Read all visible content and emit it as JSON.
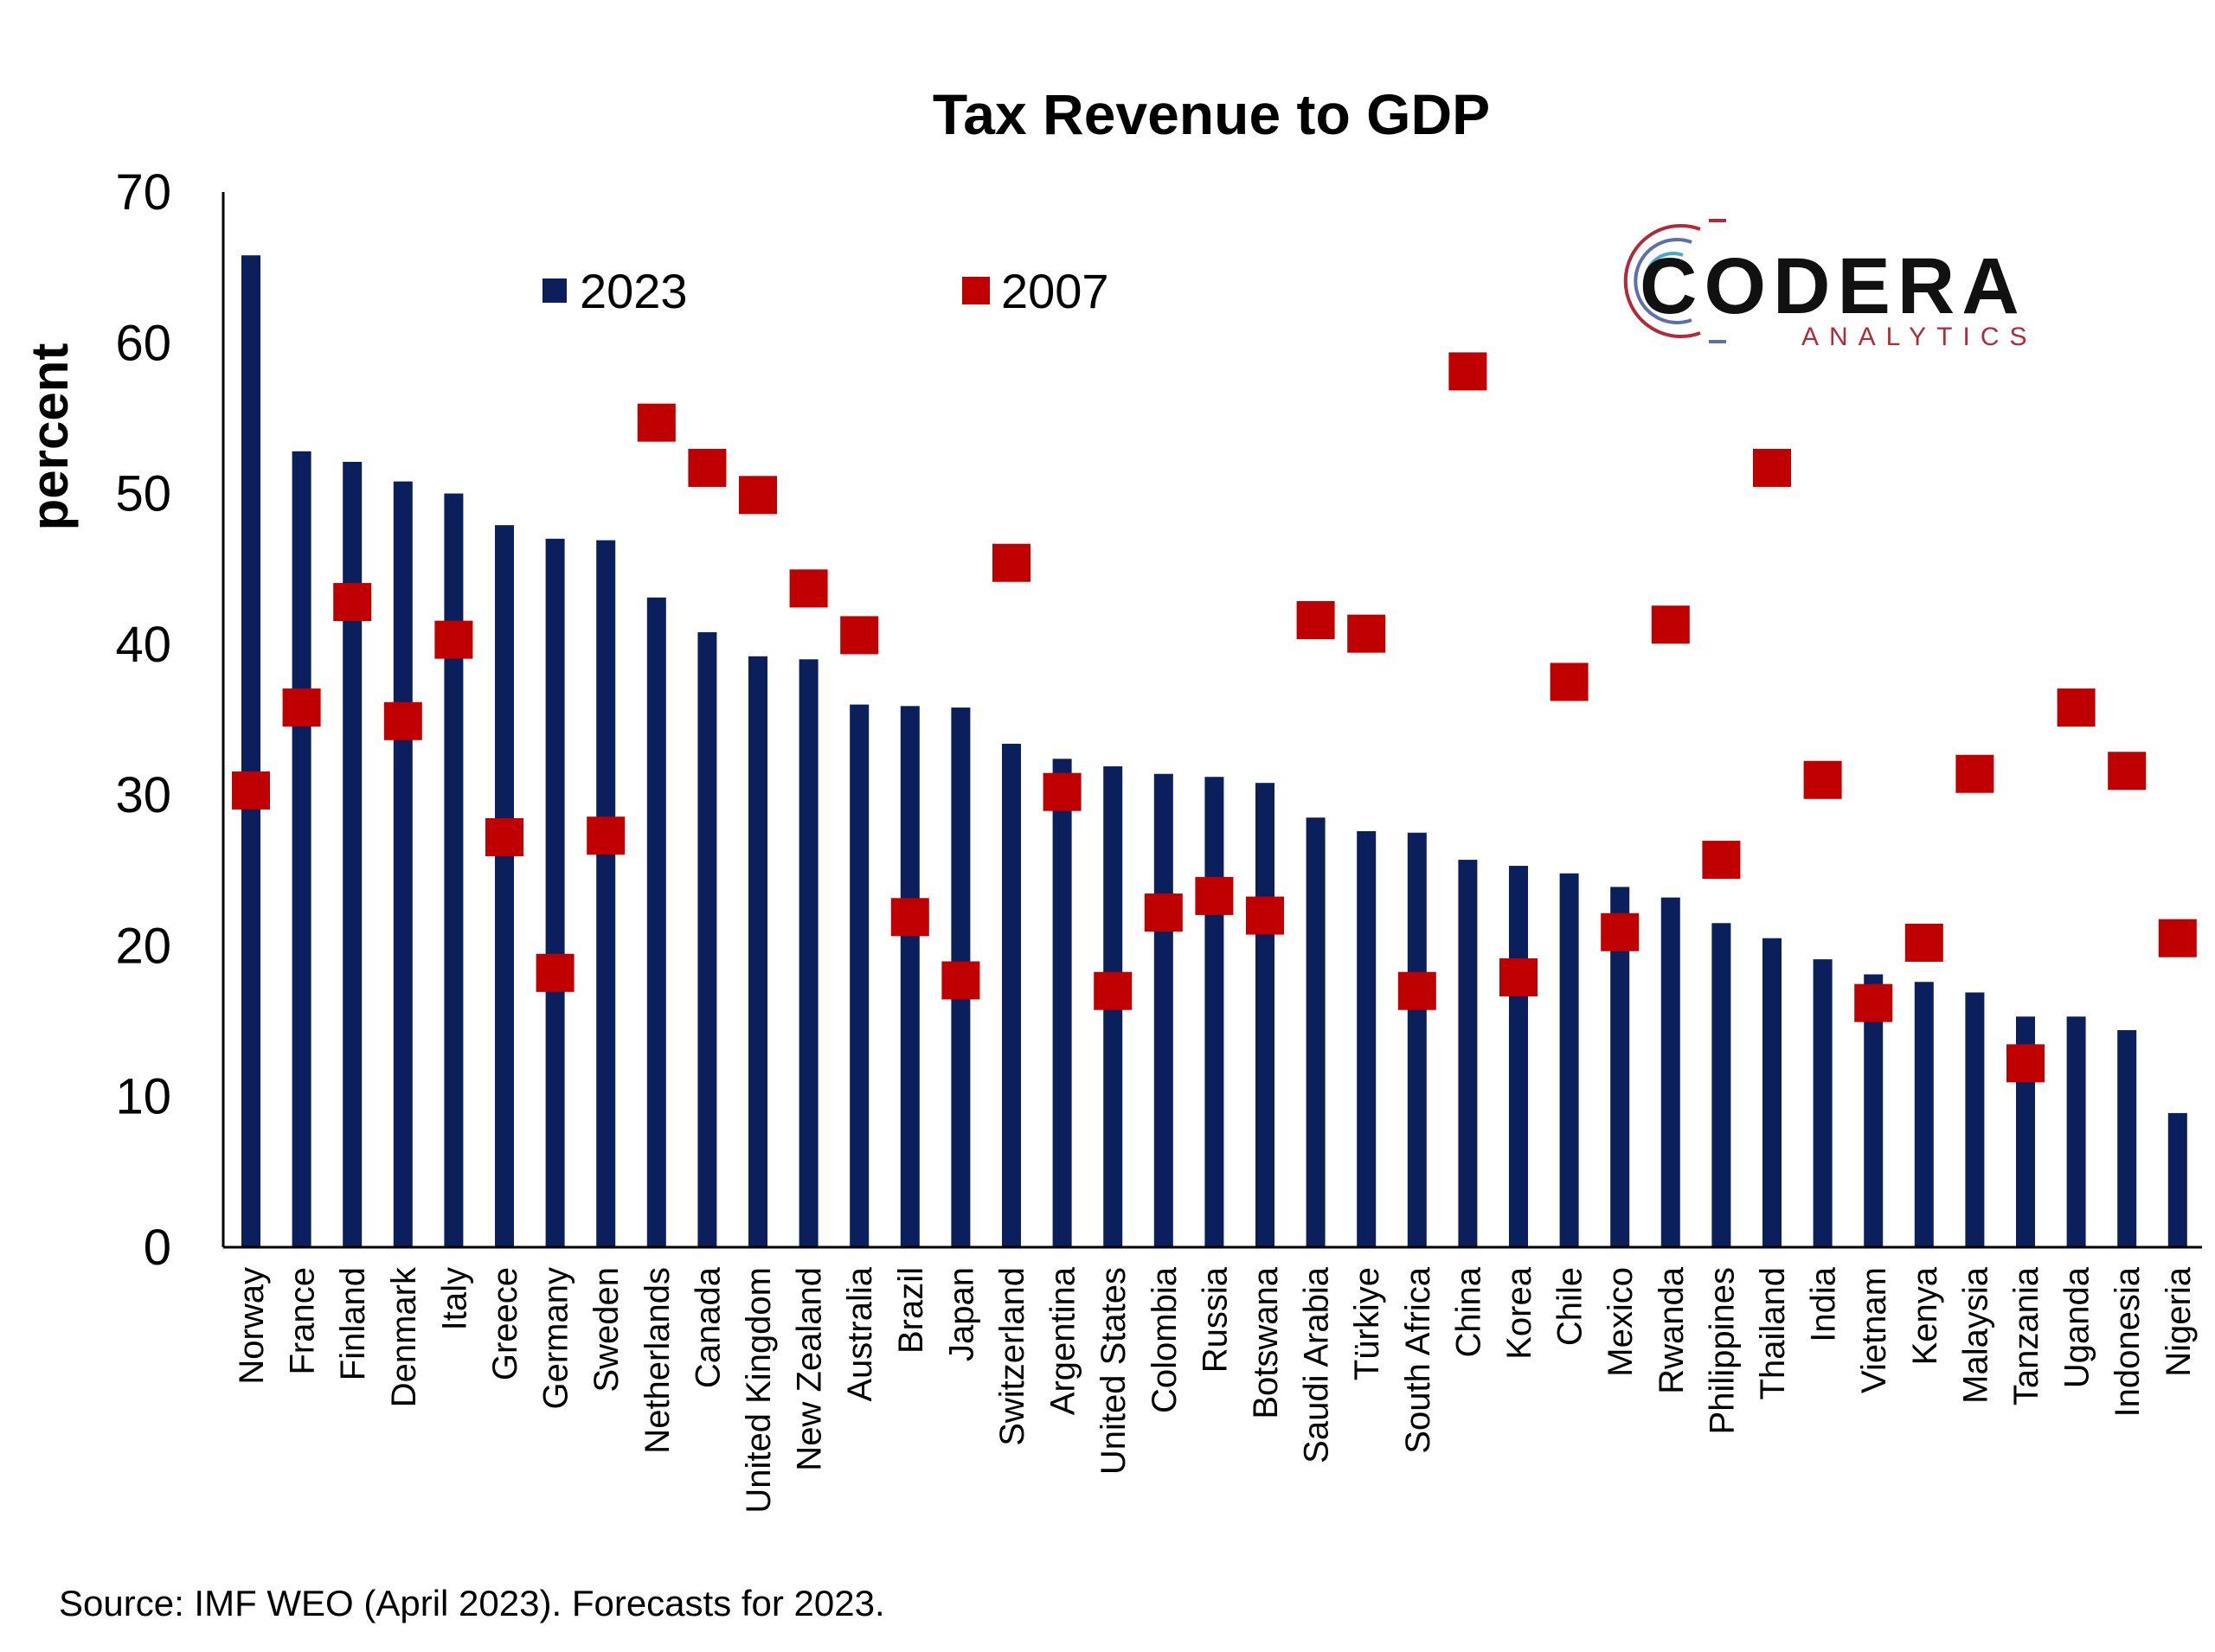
{
  "chart_data": {
    "type": "bar",
    "title": "Tax Revenue to GDP",
    "ylabel": "percent",
    "xlabel": "",
    "ylim": [
      0,
      70
    ],
    "yticks": [
      0,
      10,
      20,
      30,
      40,
      50,
      60,
      70
    ],
    "grid": false,
    "legend_position": "top",
    "categories": [
      "Norway",
      "France",
      "Finland",
      "Denmark",
      "Italy",
      "Greece",
      "Germany",
      "Sweden",
      "Netherlands",
      "Canada",
      "United Kingdom",
      "New Zealand",
      "Australia",
      "Brazil",
      "Japan",
      "Switzerland",
      "Argentina",
      "United States",
      "Colombia",
      "Russia",
      "Botswana",
      "Saudi Arabia",
      "Türkiye",
      "South Africa",
      "China",
      "Korea",
      "Chile",
      "Mexico",
      "Rwanda",
      "Philippines",
      "Thailand",
      "India",
      "Vietnam",
      "Kenya",
      "Malaysia",
      "Tanzania",
      "Uganda",
      "Indonesia",
      "Nigeria"
    ],
    "series": [
      {
        "name": "2023",
        "kind": "bar",
        "color": "#0a1f5c",
        "values": [
          65.8,
          52.8,
          52.1,
          50.8,
          50.0,
          47.9,
          47.0,
          46.9,
          43.1,
          40.8,
          39.2,
          39.0,
          36.0,
          35.9,
          35.8,
          33.4,
          32.4,
          31.9,
          31.4,
          31.2,
          30.8,
          28.5,
          27.6,
          27.5,
          25.7,
          25.3,
          24.8,
          23.9,
          23.2,
          21.5,
          20.5,
          19.1,
          18.1,
          17.6,
          16.9,
          15.3,
          15.3,
          14.4,
          8.9
        ]
      },
      {
        "name": "2007",
        "kind": "marker",
        "color": "#c00000",
        "values": [
          30.3,
          35.8,
          42.8,
          34.9,
          40.3,
          27.2,
          18.2,
          27.3,
          54.7,
          51.7,
          49.9,
          43.7,
          40.6,
          21.9,
          17.7,
          45.4,
          30.2,
          17.0,
          22.2,
          23.3,
          22.0,
          41.6,
          40.7,
          17.0,
          58.1,
          17.9,
          37.5,
          20.9,
          41.3,
          25.7,
          51.7,
          31.0,
          16.2,
          20.2,
          31.4,
          12.2,
          35.8,
          31.6,
          20.5
        ]
      }
    ]
  },
  "logo": {
    "name": "CODERA",
    "subtitle": "ANALYTICS"
  },
  "source": "Source: IMF WEO (April 2023). Forecasts for 2023."
}
